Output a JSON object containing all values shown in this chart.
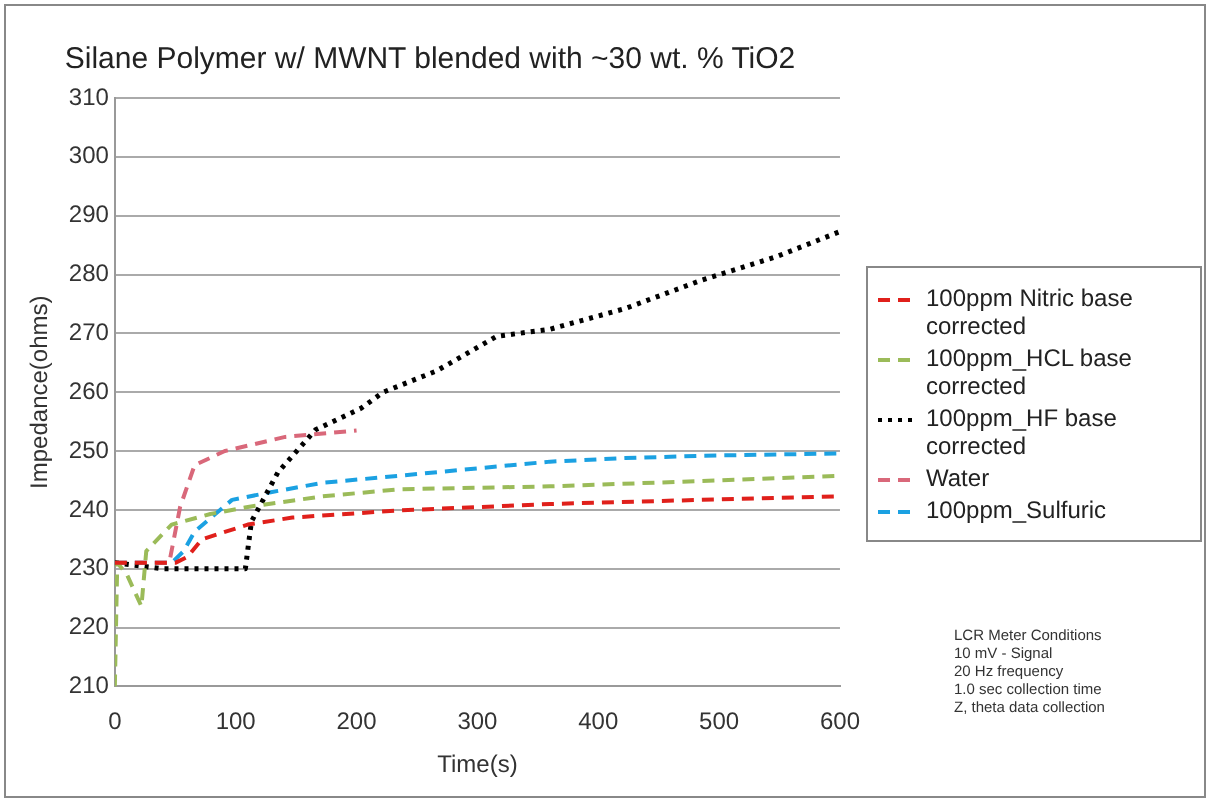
{
  "chart_data": {
    "type": "line",
    "title": "Silane Polymer w/ MWNT blended with ~30 wt. % TiO2",
    "xlabel": "Time(s)",
    "ylabel": "Impedance(ohms)",
    "xlim": [
      0,
      600
    ],
    "xticks": [
      0,
      100,
      200,
      300,
      400,
      500,
      600
    ],
    "ylim": [
      210,
      310
    ],
    "yticks": [
      210,
      220,
      230,
      240,
      250,
      260,
      270,
      280,
      290,
      300,
      310
    ],
    "grid": "y",
    "legend": "right",
    "marker": "none",
    "series": [
      {
        "name": "100ppm Nitric base corrected",
        "color": "#e0201b",
        "line_style": "dashed",
        "x": [
          0,
          50,
          60,
          72,
          110,
          147,
          235,
          360,
          485,
          600
        ],
        "values": [
          231,
          231,
          232,
          235,
          237.5,
          238.7,
          239.9,
          241,
          241.7,
          242.3
        ]
      },
      {
        "name": "100ppm_HCL base corrected",
        "color": "#9bbb59",
        "line_style": "dashed",
        "x": [
          0,
          2,
          10,
          22,
          26,
          47,
          79,
          110,
          172,
          235,
          360,
          485,
          600
        ],
        "values": [
          210,
          231,
          229,
          223.6,
          233,
          237.5,
          239.3,
          240.5,
          242.3,
          243.5,
          244,
          244.9,
          245.8
        ]
      },
      {
        "name": "100ppm_HF base corrected",
        "color": "#000000",
        "line_style": "dotted",
        "x": [
          0,
          40,
          108,
          113,
          135,
          166,
          204,
          222,
          266,
          316,
          360,
          422,
          485,
          547,
          600
        ],
        "values": [
          231,
          230,
          230,
          238,
          246.4,
          253.6,
          257.3,
          260,
          263.6,
          269.5,
          270.7,
          274.2,
          279,
          283,
          287.3
        ]
      },
      {
        "name": "Water",
        "color": "#d9687a",
        "line_style": "dashed",
        "x": [
          0,
          45,
          54,
          66,
          91,
          141,
          200
        ],
        "values": [
          231,
          231,
          240.5,
          247.6,
          250,
          252.4,
          253.5
        ]
      },
      {
        "name": "100ppm_Sulfuric",
        "color": "#1ba1e2",
        "line_style": "dashed",
        "x": [
          0,
          40,
          47,
          57,
          66,
          97,
          129,
          172,
          235,
          297,
          360,
          422,
          485,
          600
        ],
        "values": [
          231,
          231,
          231,
          233,
          236.3,
          241.7,
          243,
          244.6,
          245.8,
          247,
          248.2,
          248.8,
          249.2,
          249.6
        ]
      }
    ],
    "annotations": [
      "LCR Meter Conditions",
      "10 mV - Signal",
      "20 Hz frequency",
      "1.0 sec collection time",
      "Z, theta data collection"
    ]
  }
}
